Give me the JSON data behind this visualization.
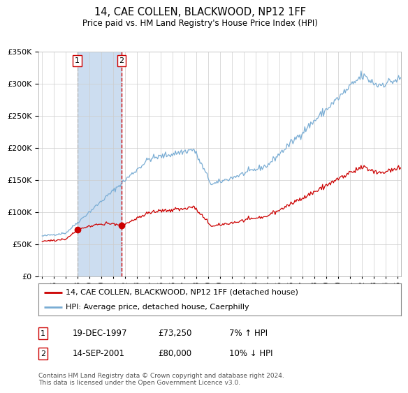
{
  "title": "14, CAE COLLEN, BLACKWOOD, NP12 1FF",
  "subtitle": "Price paid vs. HM Land Registry's House Price Index (HPI)",
  "legend_line1": "14, CAE COLLEN, BLACKWOOD, NP12 1FF (detached house)",
  "legend_line2": "HPI: Average price, detached house, Caerphilly",
  "transaction1_date": "19-DEC-1997",
  "transaction1_price": "£73,250",
  "transaction1_hpi": "7% ↑ HPI",
  "transaction2_date": "14-SEP-2001",
  "transaction2_price": "£80,000",
  "transaction2_hpi": "10% ↓ HPI",
  "footer": "Contains HM Land Registry data © Crown copyright and database right 2024.\nThis data is licensed under the Open Government Licence v3.0.",
  "red_color": "#cc0000",
  "blue_color": "#7aadd4",
  "vline1_color": "#aaaaaa",
  "vline2_color": "#cc0000",
  "span_color": "#ccddf0",
  "plot_bg_color": "#ffffff",
  "grid_color": "#cccccc",
  "transaction1_x": 1997.97,
  "transaction1_y": 73250,
  "transaction2_x": 2001.71,
  "transaction2_y": 80000,
  "ylim": [
    0,
    350000
  ],
  "yticks": [
    0,
    50000,
    100000,
    150000,
    200000,
    250000,
    300000,
    350000
  ],
  "xlim_start": 1994.7,
  "xlim_end": 2025.3,
  "xticks": [
    1995,
    1996,
    1997,
    1998,
    1999,
    2000,
    2001,
    2002,
    2003,
    2004,
    2005,
    2006,
    2007,
    2008,
    2009,
    2010,
    2011,
    2012,
    2013,
    2014,
    2015,
    2016,
    2017,
    2018,
    2019,
    2020,
    2021,
    2022,
    2023,
    2024,
    2025
  ]
}
